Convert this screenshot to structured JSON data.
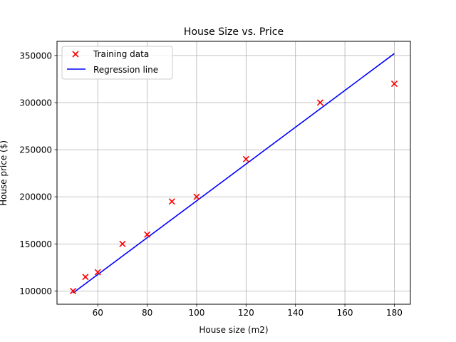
{
  "chart_data": {
    "type": "scatter",
    "title": "House Size vs. Price",
    "xlabel": "House size (m2)",
    "ylabel": "House price ($)",
    "xlim": [
      43.5,
      186.5
    ],
    "ylim": [
      86000,
      365000
    ],
    "x_ticks": [
      60,
      80,
      100,
      120,
      140,
      160,
      180
    ],
    "y_ticks": [
      100000,
      150000,
      200000,
      250000,
      300000,
      350000
    ],
    "grid": true,
    "legend_position": "top-left",
    "series": [
      {
        "name": "Training data",
        "kind": "scatter",
        "marker": "x",
        "color": "#ff0000",
        "x": [
          50,
          55,
          60,
          70,
          80,
          90,
          100,
          120,
          150,
          180
        ],
        "y": [
          100000,
          115000,
          120000,
          150000,
          160000,
          195000,
          200000,
          240000,
          300000,
          320000
        ]
      },
      {
        "name": "Regression line",
        "kind": "line",
        "color": "#0000ff",
        "x": [
          50,
          180
        ],
        "y": [
          98000,
          352000
        ]
      }
    ]
  }
}
